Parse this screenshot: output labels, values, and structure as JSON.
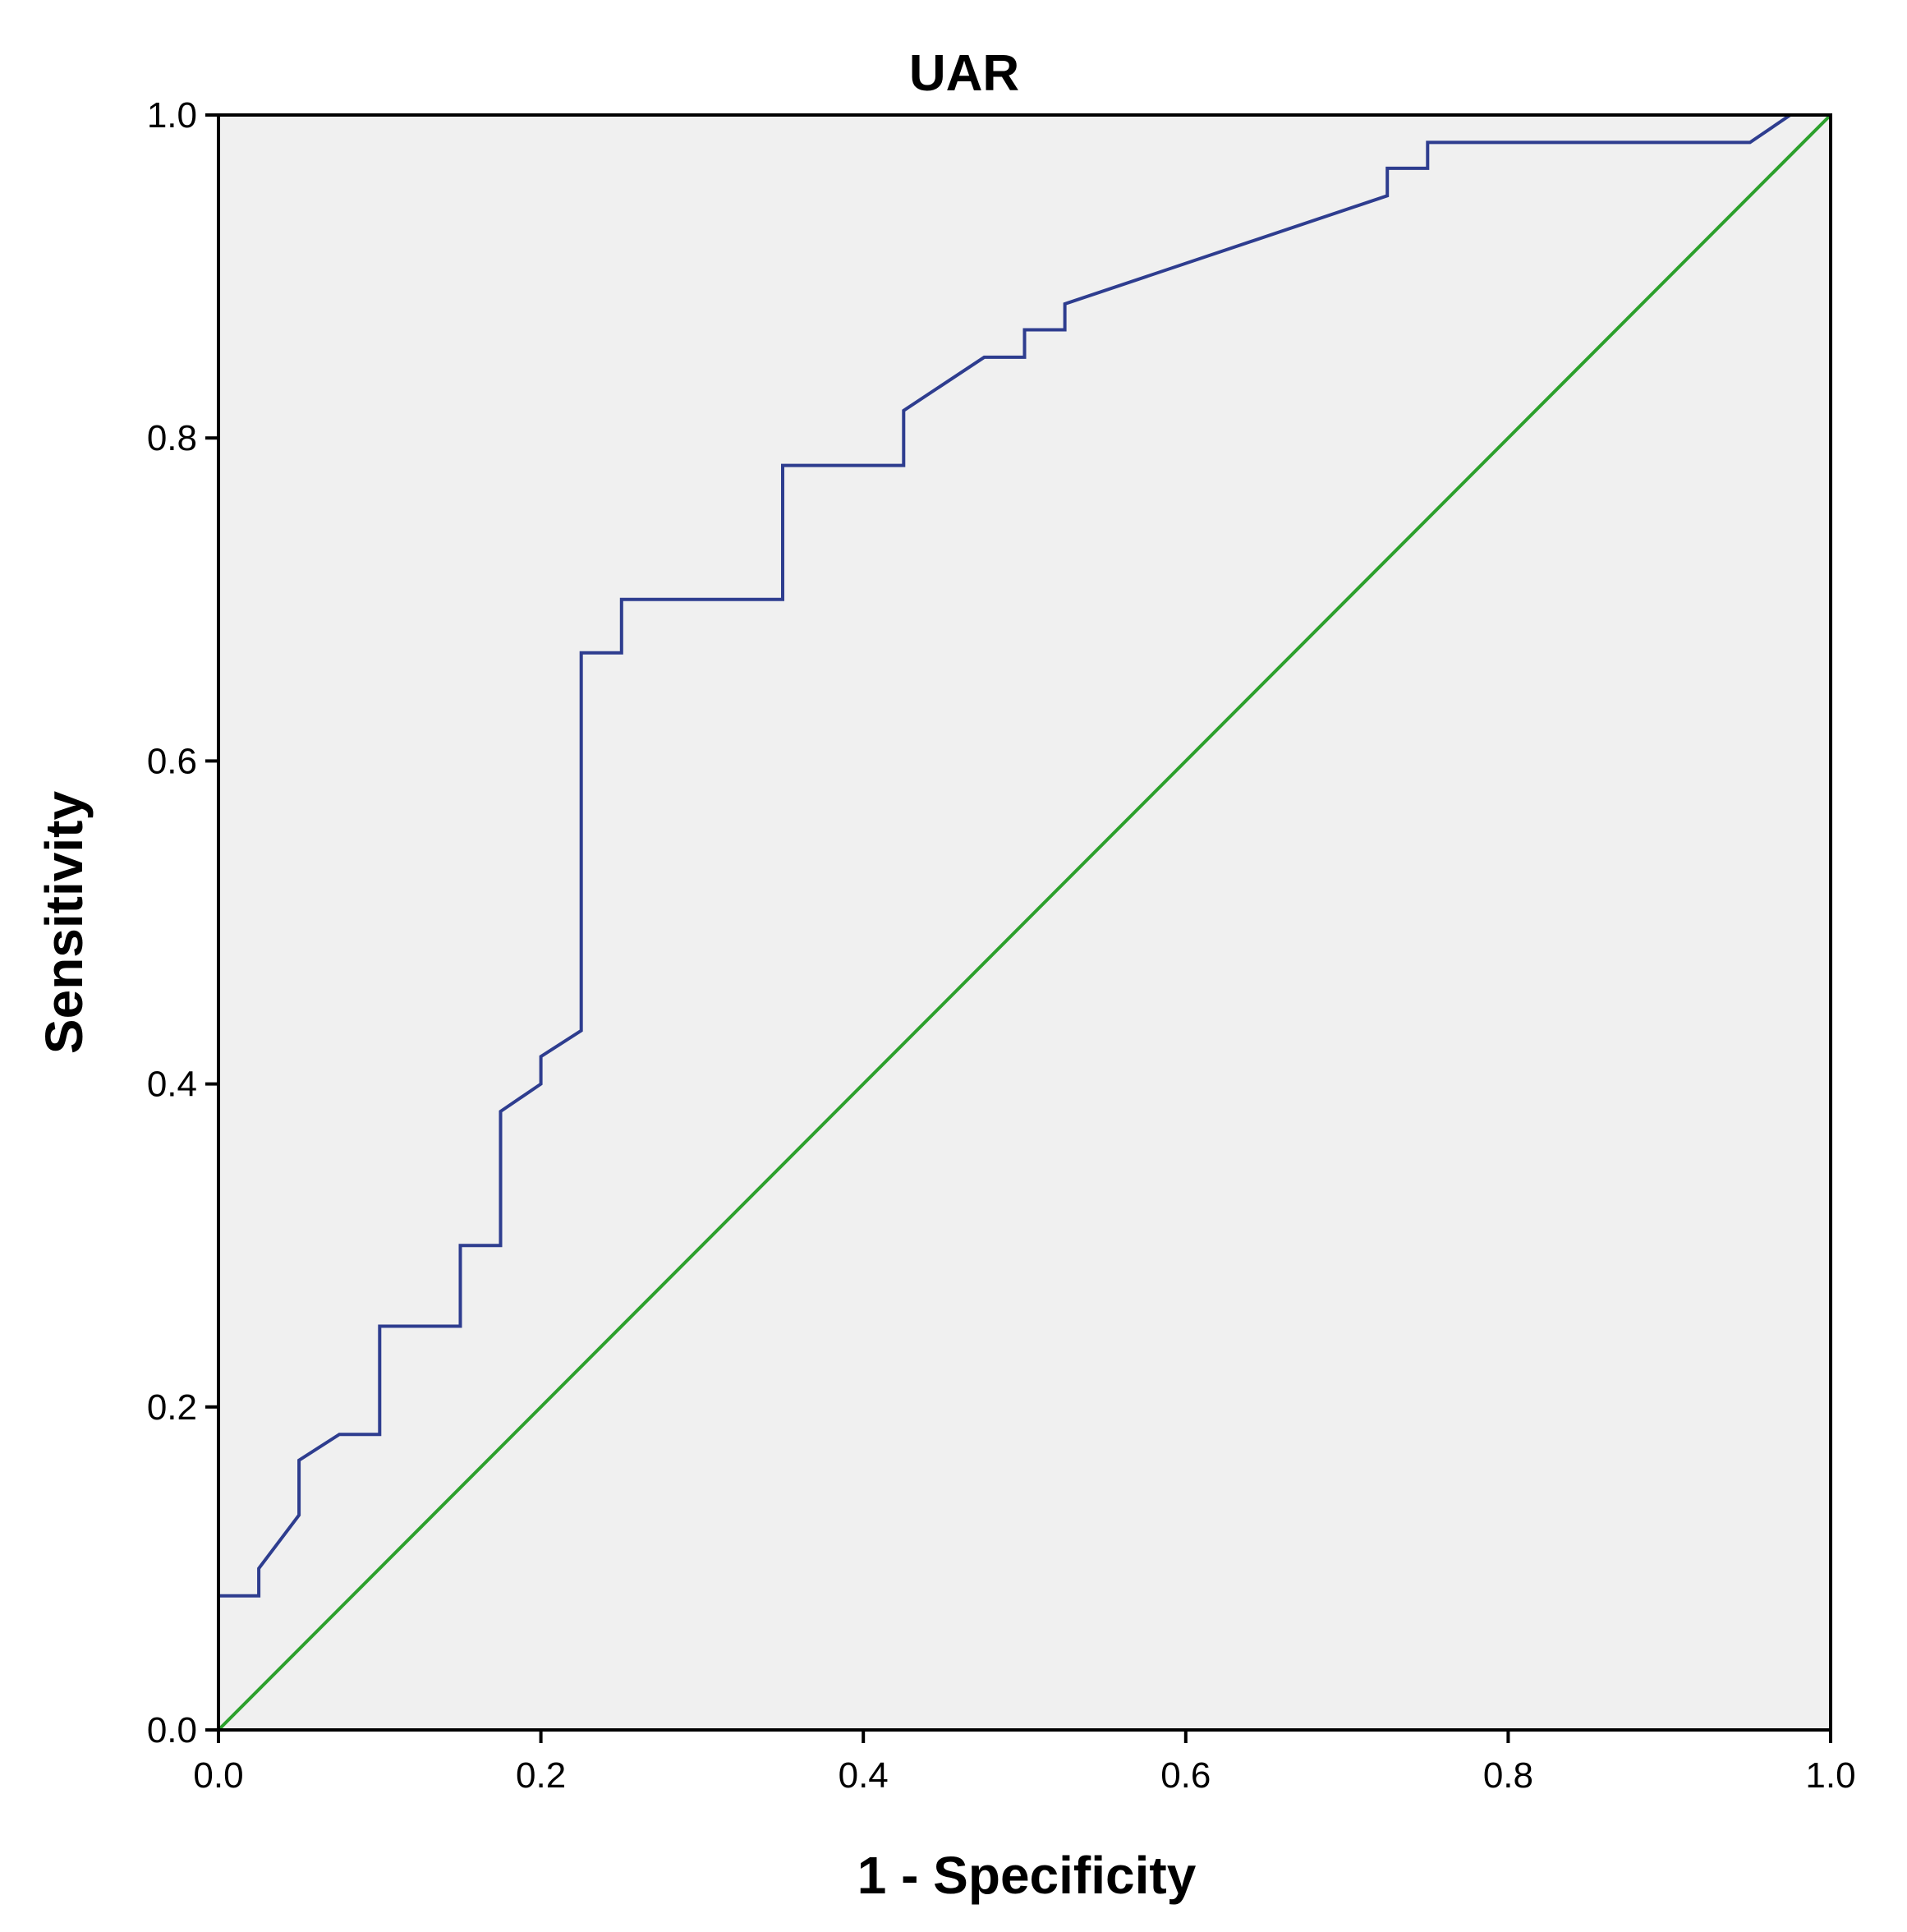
{
  "chart_data": {
    "type": "line",
    "title": "UAR",
    "xlabel": "1 - Specificity",
    "ylabel": "Sensitivity",
    "xlim": [
      0.0,
      1.0
    ],
    "ylim": [
      0.0,
      1.0
    ],
    "x_ticks": [
      "0.0",
      "0.2",
      "0.4",
      "0.6",
      "0.8",
      "1.0"
    ],
    "y_ticks": [
      "0.0",
      "0.2",
      "0.4",
      "0.6",
      "0.8",
      "1.0"
    ],
    "grid": false,
    "legend": "none",
    "background_color": "#f0f0f0",
    "series": [
      {
        "color": "#2e3d8f",
        "x": [
          0.0,
          0.0,
          0.025,
          0.025,
          0.05,
          0.05,
          0.075,
          0.1,
          0.1,
          0.15,
          0.15,
          0.175,
          0.175,
          0.2,
          0.2,
          0.225,
          0.225,
          0.25,
          0.25,
          0.35,
          0.35,
          0.425,
          0.425,
          0.475,
          0.5,
          0.5,
          0.525,
          0.525,
          0.725,
          0.725,
          0.75,
          0.75,
          0.95,
          0.975,
          1.0
        ],
        "y": [
          0.0,
          0.083,
          0.083,
          0.1,
          0.133,
          0.167,
          0.183,
          0.183,
          0.25,
          0.25,
          0.3,
          0.3,
          0.383,
          0.4,
          0.417,
          0.433,
          0.667,
          0.667,
          0.7,
          0.7,
          0.783,
          0.783,
          0.817,
          0.85,
          0.85,
          0.867,
          0.867,
          0.883,
          0.95,
          0.967,
          0.967,
          0.983,
          0.983,
          1.0,
          1.0
        ]
      },
      {
        "color": "#2ca02c",
        "x": [
          0.0,
          1.0
        ],
        "y": [
          0.0,
          1.0
        ]
      }
    ]
  }
}
